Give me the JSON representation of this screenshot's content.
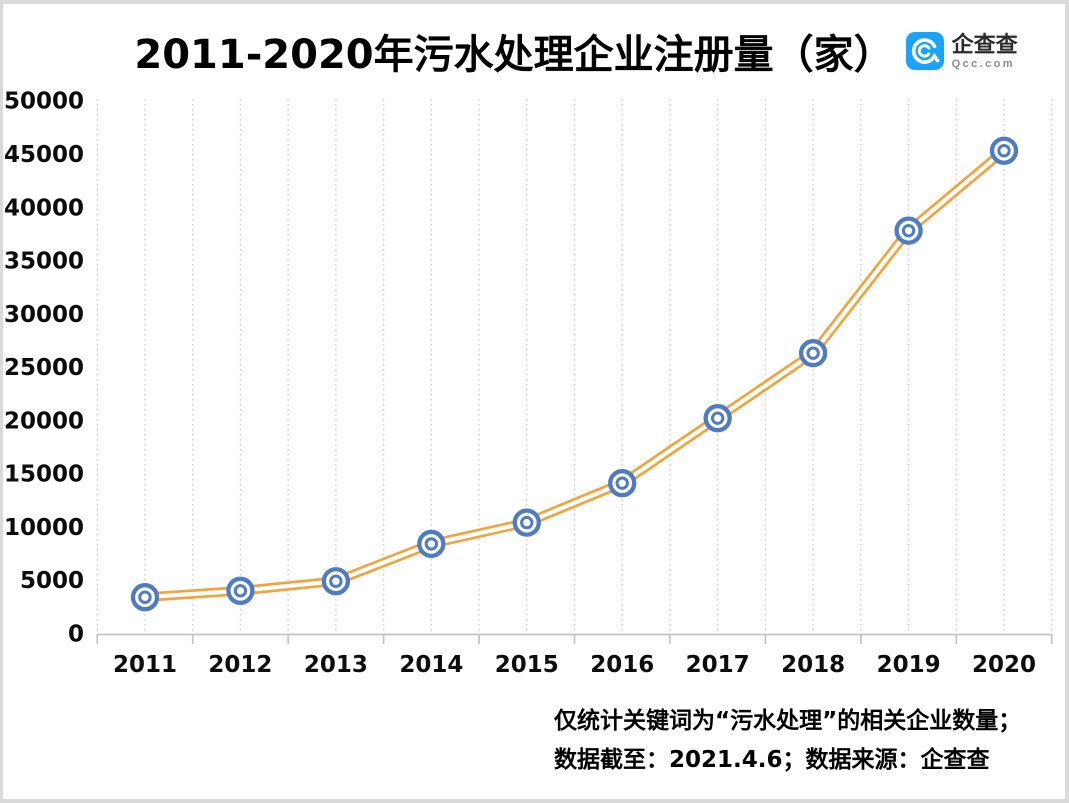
{
  "title": {
    "text": "2011-2020年污水处理企业注册量（家）"
  },
  "logo": {
    "name": "企查查",
    "domain": "Qcc.com",
    "icon": "qcc-spiral-q",
    "brand_color": "#1ba3fc"
  },
  "chart_data": {
    "type": "line",
    "title": "2011-2020年污水处理企业注册量（家）",
    "categories": [
      "2011",
      "2012",
      "2013",
      "2014",
      "2015",
      "2016",
      "2017",
      "2018",
      "2019",
      "2020"
    ],
    "series": [
      {
        "name": "污水处理企业注册量（家）",
        "values": [
          3500,
          4100,
          5000,
          8500,
          10500,
          14200,
          20300,
          26400,
          37900,
          45400
        ]
      }
    ],
    "xlabel": "",
    "ylabel": "",
    "ylim": [
      0,
      50000
    ],
    "ytick_interval": 5000,
    "grid": "vertical-dotted",
    "legend": "none",
    "line_color": "#F2A33C",
    "line_style": "double",
    "marker": "double-circle",
    "marker_color": "#4F7BC5",
    "gridline_color": "#d0d0d0",
    "axis_color": "#c4c4c4",
    "tick_label_color": "#0d0d0d"
  },
  "footnote": {
    "line1": "仅统计关键词为“污水处理”的相关企业数量；",
    "line2": "数据截至：2021.4.6；数据来源：企查查"
  }
}
